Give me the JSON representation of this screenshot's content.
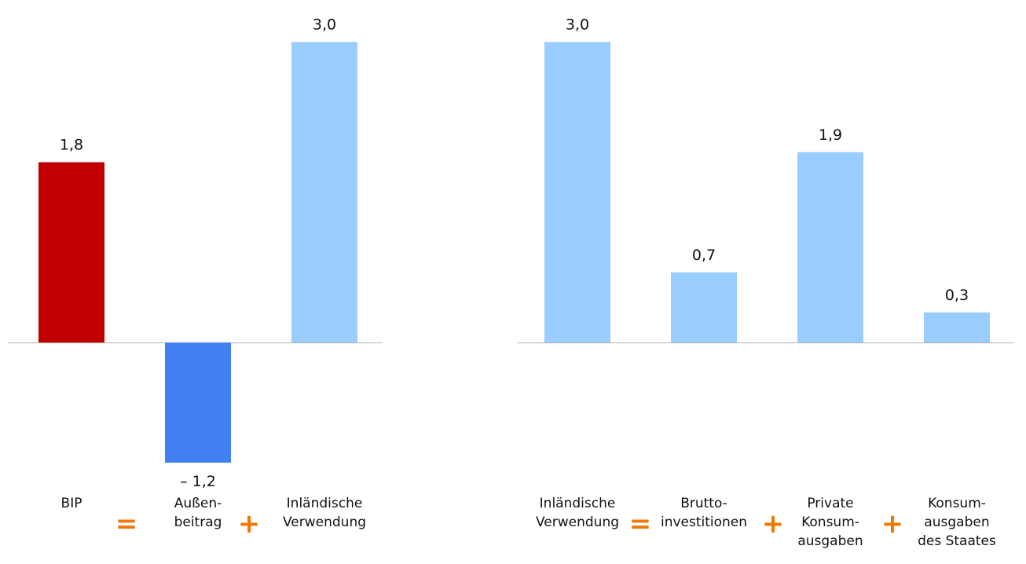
{
  "chart_data": [
    {
      "type": "bar",
      "categories": [
        "BIP",
        "Außen-\nbeitrag",
        "Inländische\nVerwendung"
      ],
      "values": [
        1.8,
        -1.2,
        3.0
      ],
      "value_labels": [
        "1,8",
        "– 1,2",
        "3,0"
      ],
      "colors": [
        "#c00000",
        "#4080f0",
        "#99ccff"
      ],
      "operators": [
        "=",
        "+"
      ],
      "title": "",
      "xlabel": "",
      "ylabel": "",
      "ylim": [
        -1.2,
        3.0
      ],
      "grid": false,
      "legend": "none"
    },
    {
      "type": "bar",
      "categories": [
        "Inländische\nVerwendung",
        "Brutto-\ninvestitionen",
        "Private\nKonsum-\nausgaben",
        "Konsum-\nausgaben\ndes Staates"
      ],
      "values": [
        3.0,
        0.7,
        1.9,
        0.3
      ],
      "value_labels": [
        "3,0",
        "0,7",
        "1,9",
        "0,3"
      ],
      "colors": [
        "#99ccff",
        "#99ccff",
        "#99ccff",
        "#99ccff"
      ],
      "operators": [
        "=",
        "+",
        "+"
      ],
      "title": "",
      "xlabel": "",
      "ylabel": "",
      "ylim": [
        0,
        3.0
      ],
      "grid": false,
      "legend": "none"
    }
  ],
  "colors": {
    "operator": "#f07800",
    "axis": "#b0b0b0"
  }
}
